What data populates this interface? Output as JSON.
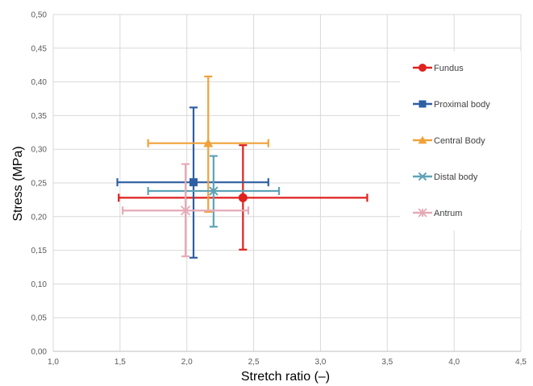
{
  "chart_data": {
    "type": "scatter",
    "xlabel": "Stretch ratio (–)",
    "ylabel": "Stress (MPa)",
    "xlim": [
      1.0,
      4.5
    ],
    "ylim": [
      0.0,
      0.5
    ],
    "x_ticks": [
      "1,0",
      "1,5",
      "2,0",
      "2,5",
      "3,0",
      "3,5",
      "4,0",
      "4,5"
    ],
    "y_ticks": [
      "0,00",
      "0,05",
      "0,10",
      "0,15",
      "0,20",
      "0,25",
      "0,30",
      "0,35",
      "0,40",
      "0,45",
      "0,50"
    ],
    "grid": true,
    "legend_position": "right",
    "series": [
      {
        "name": "Fundus",
        "color": "#e0211e",
        "marker": "circle",
        "x": 2.42,
        "y": 0.228,
        "x_err": [
          1.49,
          3.35
        ],
        "y_err": [
          0.151,
          0.306
        ]
      },
      {
        "name": "Proximal body",
        "color": "#2e5fa3",
        "marker": "square",
        "x": 2.05,
        "y": 0.251,
        "x_err": [
          1.48,
          2.61
        ],
        "y_err": [
          0.139,
          0.362
        ]
      },
      {
        "name": "Central Body",
        "color": "#f0a23a",
        "marker": "triangle",
        "x": 2.16,
        "y": 0.309,
        "x_err": [
          1.71,
          2.61
        ],
        "y_err": [
          0.207,
          0.408
        ]
      },
      {
        "name": "Distal body",
        "color": "#5ea2b8",
        "marker": "x",
        "x": 2.2,
        "y": 0.238,
        "x_err": [
          1.71,
          2.69
        ],
        "y_err": [
          0.185,
          0.29
        ]
      },
      {
        "name": "Antrum",
        "color": "#e6a9b6",
        "marker": "asterisk",
        "x": 1.99,
        "y": 0.209,
        "x_err": [
          1.52,
          2.46
        ],
        "y_err": [
          0.141,
          0.278
        ]
      }
    ]
  }
}
